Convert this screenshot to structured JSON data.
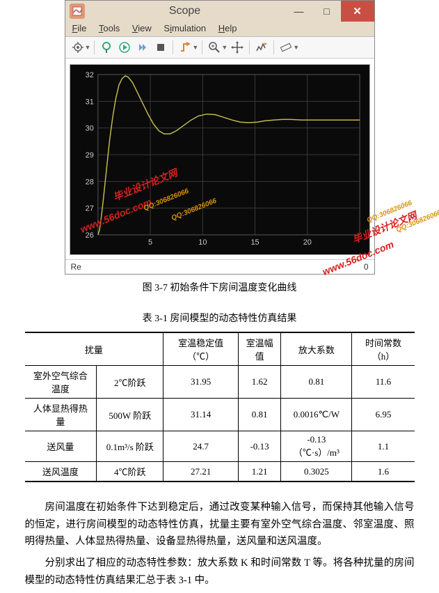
{
  "window": {
    "title": "Scope",
    "menus": {
      "file": "File",
      "tools": "Tools",
      "view": "View",
      "simulation": "Simulation",
      "help": "Help"
    },
    "status_left": "Re",
    "status_right": "0",
    "status_right_partial": ". . . . . . . ."
  },
  "chart": {
    "type": "line",
    "ylim": [
      26,
      32
    ],
    "yticks": [
      26,
      27,
      28,
      29,
      30,
      31,
      32
    ],
    "xlim": [
      0,
      25
    ],
    "xticks": [
      5,
      10,
      15,
      20
    ],
    "line_color": "#c0b850",
    "bg_color": "#0a0a0a",
    "grid_color": "#3a3a3a",
    "axis_text_color": "#cccccc",
    "points": [
      [
        0,
        26.0
      ],
      [
        0.15,
        26.2
      ],
      [
        0.3,
        26.6
      ],
      [
        0.5,
        27.3
      ],
      [
        0.8,
        28.4
      ],
      [
        1.1,
        29.5
      ],
      [
        1.4,
        30.4
      ],
      [
        1.7,
        31.1
      ],
      [
        2.0,
        31.6
      ],
      [
        2.3,
        31.85
      ],
      [
        2.6,
        31.95
      ],
      [
        2.9,
        31.9
      ],
      [
        3.3,
        31.7
      ],
      [
        3.8,
        31.3
      ],
      [
        4.3,
        30.9
      ],
      [
        4.8,
        30.5
      ],
      [
        5.3,
        30.15
      ],
      [
        5.8,
        29.9
      ],
      [
        6.3,
        29.78
      ],
      [
        6.9,
        29.78
      ],
      [
        7.5,
        29.9
      ],
      [
        8.2,
        30.1
      ],
      [
        8.9,
        30.3
      ],
      [
        9.6,
        30.45
      ],
      [
        10.4,
        30.52
      ],
      [
        11.2,
        30.5
      ],
      [
        12.0,
        30.4
      ],
      [
        12.8,
        30.3
      ],
      [
        13.6,
        30.22
      ],
      [
        14.4,
        30.2
      ],
      [
        15.2,
        30.22
      ],
      [
        16.0,
        30.27
      ],
      [
        16.8,
        30.3
      ],
      [
        17.6,
        30.32
      ],
      [
        18.4,
        30.32
      ],
      [
        19.5,
        30.3
      ],
      [
        21,
        30.3
      ],
      [
        23,
        30.3
      ],
      [
        25,
        30.3
      ]
    ]
  },
  "captions": {
    "fig": "图 3-7  初始条件下房间温度变化曲线",
    "tbl": "表 3-1    房间模型的动态特性仿真结果"
  },
  "watermarks": {
    "url": "www.56doc.com",
    "design": "毕业设计论文网",
    "qq": "QQ:306826066"
  },
  "table": {
    "headers": [
      "扰量",
      "室温稳定值（℃）",
      "室温幅值",
      "放大系数",
      "时间常数（h）"
    ],
    "rows": [
      {
        "label": "室外空气综合温度",
        "disturb": "2℃阶跃",
        "steady": "31.95",
        "amp": "1.62",
        "gain": "0.81",
        "tau": "11.6"
      },
      {
        "label": "人体显热得热量",
        "disturb": "500W 阶跃",
        "steady": "31.14",
        "amp": "0.81",
        "gain": "0.0016℃/W",
        "tau": "6.95"
      },
      {
        "label": "送风量",
        "disturb": "0.1m³/s 阶跃",
        "steady": "24.7",
        "amp": "-0.13",
        "gain": "-0.13（℃·s）/m³",
        "tau": "1.1"
      },
      {
        "label": "送风温度",
        "disturb": "4℃阶跃",
        "steady": "27.21",
        "amp": "1.21",
        "gain": "0.3025",
        "tau": "1.6"
      }
    ]
  },
  "paragraphs": {
    "p1": "房间温度在初始条件下达到稳定后，通过改变某种输入信号，而保持其他输入信号的恒定，进行房间模型的动态特性仿真，扰量主要有室外空气综合温度、邻室温度、照明得热量、人体显热得热量、设备显热得热量，送风量和送风温度。",
    "p2": "分别求出了相应的动态特性参数：放大系数 K 和时间常数 T 等。将各种扰量的房间模型的动态特性仿真结果汇总于表 3-1 中。"
  }
}
